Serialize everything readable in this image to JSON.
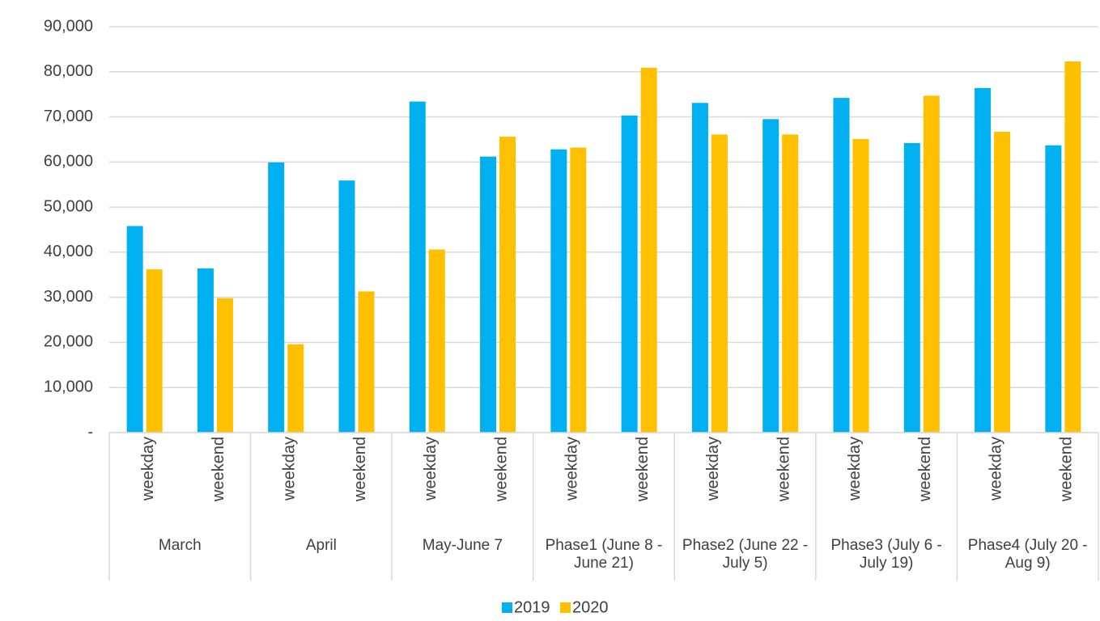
{
  "chart_data": {
    "type": "bar",
    "groups": [
      {
        "name": "March",
        "categories": [
          "weekday",
          "weekend"
        ]
      },
      {
        "name": "April",
        "categories": [
          "weekday",
          "weekend"
        ]
      },
      {
        "name": "May-June 7",
        "categories": [
          "weekday",
          "weekend"
        ]
      },
      {
        "name": "Phase1 (June 8 - June 21)",
        "categories": [
          "weekday",
          "weekend"
        ]
      },
      {
        "name": "Phase2 (June 22 - July 5)",
        "categories": [
          "weekday",
          "weekend"
        ]
      },
      {
        "name": "Phase3 (July 6 - July 19)",
        "categories": [
          "weekday",
          "weekend"
        ]
      },
      {
        "name": "Phase4 (July 20 - Aug 9)",
        "categories": [
          "weekday",
          "weekend"
        ]
      }
    ],
    "series": [
      {
        "name": "2019",
        "color": "#00b0f0",
        "values": [
          45800,
          36400,
          59900,
          55900,
          73400,
          61200,
          62800,
          70300,
          73100,
          69500,
          74200,
          64200,
          76400,
          63700
        ]
      },
      {
        "name": "2020",
        "color": "#ffc000",
        "values": [
          36200,
          29800,
          19600,
          31300,
          40600,
          65600,
          63200,
          80900,
          66100,
          66100,
          65100,
          74700,
          66700,
          82300
        ]
      }
    ],
    "ylim": [
      0,
      90000
    ],
    "yticks": [
      {
        "value": 0,
        "label": "-"
      },
      {
        "value": 10000,
        "label": "10,000"
      },
      {
        "value": 20000,
        "label": "20,000"
      },
      {
        "value": 30000,
        "label": "30,000"
      },
      {
        "value": 40000,
        "label": "40,000"
      },
      {
        "value": 50000,
        "label": "50,000"
      },
      {
        "value": 60000,
        "label": "60,000"
      },
      {
        "value": 70000,
        "label": "70,000"
      },
      {
        "value": 80000,
        "label": "80,000"
      },
      {
        "value": 90000,
        "label": "90,000"
      }
    ],
    "grid": true,
    "legend": "bottom"
  }
}
